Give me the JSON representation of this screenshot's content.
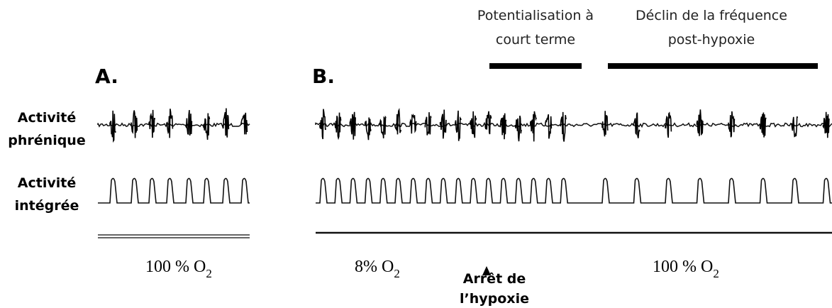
{
  "panels": [
    {
      "label": "A.",
      "conditions": [
        {
          "text": "100 % O",
          "sub": "2"
        }
      ]
    },
    {
      "label": "B.",
      "conditions": [
        {
          "text": "8% O",
          "sub": "2"
        },
        {
          "text": "100 % O",
          "sub": "2"
        }
      ],
      "marker": [
        "Arrêt de",
        "l’hypoxie"
      ]
    }
  ],
  "row_labels": [
    [
      "Activité",
      "phrénique"
    ],
    [
      "Activité",
      "intégrée"
    ]
  ],
  "phases": [
    [
      "Potentialisation à",
      "court terme"
    ],
    [
      "Déclin de la fréquence",
      "post-hypoxie"
    ]
  ]
}
